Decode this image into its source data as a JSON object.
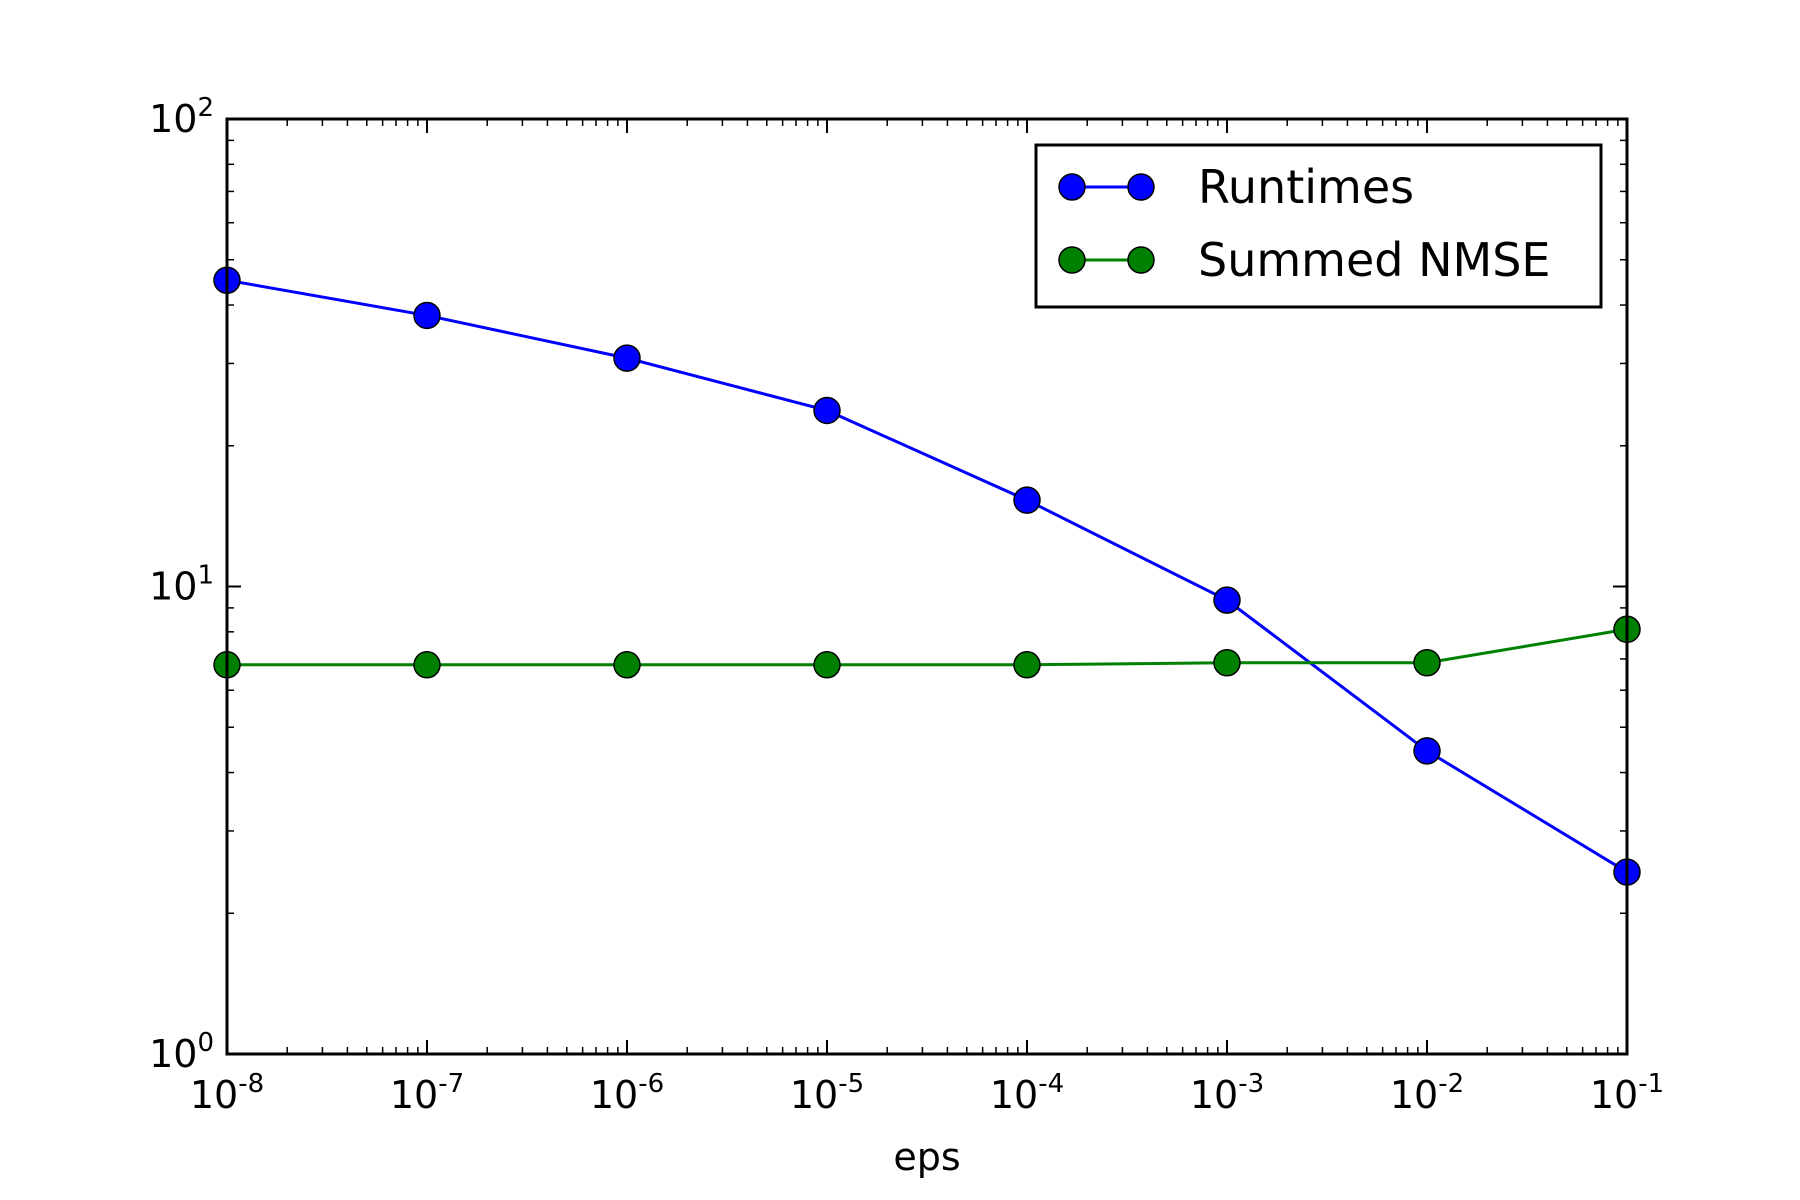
{
  "chart_data": {
    "type": "line",
    "x_scale": "log",
    "y_scale": "log",
    "xlabel": "eps",
    "ylabel": "",
    "xlim": [
      1e-08,
      0.1
    ],
    "ylim": [
      1,
      100
    ],
    "x": [
      1e-08,
      1e-07,
      1e-06,
      1e-05,
      0.0001,
      0.001,
      0.01,
      0.1
    ],
    "x_tick_exponents": [
      "-8",
      "-7",
      "-6",
      "-5",
      "-4",
      "-3",
      "-2",
      "-1"
    ],
    "y_tick_exponents": [
      "0",
      "1",
      "2"
    ],
    "tick_base": "10",
    "grid": false,
    "legend_position": "upper right",
    "series": [
      {
        "name": "Runtimes",
        "color": "#0000ff",
        "values": [
          45.2,
          38.0,
          30.8,
          23.8,
          15.3,
          9.35,
          4.45,
          2.45
        ]
      },
      {
        "name": "Summed NMSE",
        "color": "#008000",
        "values": [
          6.8,
          6.8,
          6.8,
          6.8,
          6.8,
          6.87,
          6.87,
          8.1
        ]
      }
    ]
  }
}
